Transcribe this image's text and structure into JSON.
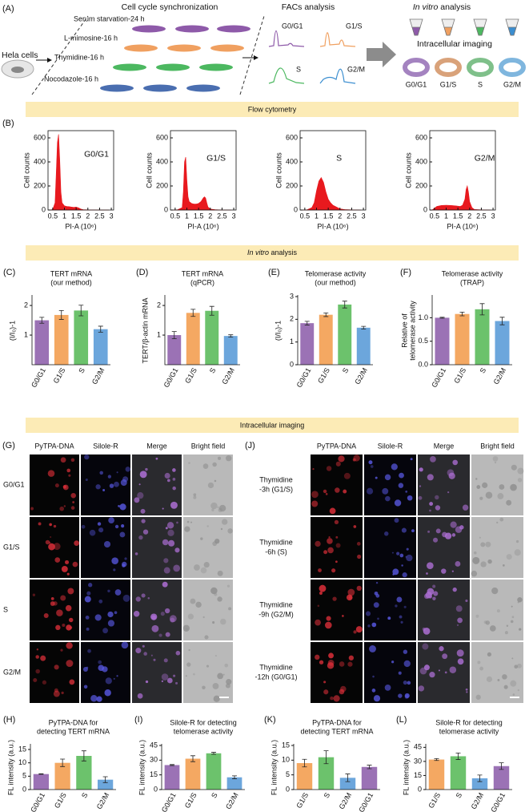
{
  "panel_a": {
    "label": "(A)",
    "source": "Hela cells",
    "sync_title": "Cell cycle synchronization",
    "treatments": [
      "Serum starvation-24 h",
      "L-mimosine-16 h",
      "Thymidine-16 h",
      "Nocodazole-16 h"
    ],
    "facs_title": "FACs analysis",
    "facs_phases": [
      "G0/G1",
      "G1/S",
      "S",
      "G2/M"
    ],
    "invitro_title": [
      "In vitro",
      "analysis"
    ],
    "imaging_title": "Intracellular imaging",
    "imaging_phases": [
      "G0/G1",
      "G1/S",
      "S",
      "G2/M"
    ]
  },
  "section_flow": "Flow cytometry",
  "section_invitro": [
    "In vitro",
    "analysis"
  ],
  "section_imaging": "Intracellular imaging",
  "panel_b_label": "(B)",
  "chart_data": [
    {
      "type": "area",
      "annotation": "G0/G1",
      "xlabel": "PI-A (10⁶)",
      "ylabel": "Cell counts",
      "color": "#e8191e",
      "x": [
        0.4,
        0.5,
        0.6,
        0.65,
        0.7,
        0.75,
        0.8,
        0.85,
        0.9,
        1.0,
        1.1,
        1.2,
        1.3,
        1.4,
        1.5,
        1.6,
        1.7,
        1.8,
        2.0,
        2.5,
        2.9
      ],
      "values": [
        0,
        5,
        60,
        300,
        560,
        630,
        420,
        150,
        60,
        35,
        30,
        28,
        25,
        22,
        25,
        18,
        8,
        3,
        1,
        0,
        0
      ],
      "xlim": [
        0.3,
        3.1
      ],
      "xticks": [
        0.5,
        1,
        1.5,
        2,
        2.5,
        3
      ],
      "ylim": [
        0,
        660
      ],
      "yticks": [
        0,
        200,
        400,
        600
      ]
    },
    {
      "type": "area",
      "annotation": "G1/S",
      "xlabel": "PI-A (10⁶)",
      "ylabel": "Cell counts",
      "color": "#e8191e",
      "x": [
        0.4,
        0.6,
        0.8,
        0.85,
        0.9,
        0.95,
        1.0,
        1.05,
        1.1,
        1.2,
        1.3,
        1.4,
        1.5,
        1.6,
        1.7,
        1.75,
        1.8,
        1.85,
        1.9,
        2.0,
        2.2,
        2.5,
        2.9
      ],
      "values": [
        0,
        2,
        20,
        150,
        400,
        440,
        250,
        110,
        70,
        55,
        50,
        50,
        55,
        70,
        100,
        110,
        100,
        60,
        25,
        8,
        3,
        0,
        0
      ],
      "xlim": [
        0.3,
        3.1
      ],
      "xticks": [
        0.5,
        1,
        1.5,
        2,
        2.5,
        3
      ],
      "ylim": [
        0,
        660
      ],
      "yticks": [
        0,
        200,
        400,
        600
      ]
    },
    {
      "type": "area",
      "annotation": "S",
      "xlabel": "PI-A (10⁶)",
      "ylabel": "Cell counts",
      "color": "#e8191e",
      "x": [
        0.4,
        0.6,
        0.8,
        0.9,
        1.0,
        1.1,
        1.2,
        1.3,
        1.4,
        1.5,
        1.6,
        1.7,
        1.8,
        1.9,
        2.0,
        2.2,
        2.5,
        2.9
      ],
      "values": [
        0,
        2,
        20,
        60,
        160,
        240,
        270,
        230,
        150,
        90,
        60,
        40,
        30,
        20,
        10,
        4,
        1,
        0
      ],
      "xlim": [
        0.3,
        3.1
      ],
      "xticks": [
        0.5,
        1,
        1.5,
        2,
        2.5,
        3
      ],
      "ylim": [
        0,
        660
      ],
      "yticks": [
        0,
        200,
        400,
        600
      ]
    },
    {
      "type": "area",
      "annotation": "G2/M",
      "xlabel": "PI-A (10⁶)",
      "ylabel": "Cell counts",
      "color": "#e8191e",
      "x": [
        0.4,
        0.5,
        0.6,
        0.8,
        1.0,
        1.2,
        1.4,
        1.6,
        1.7,
        1.8,
        1.85,
        1.9,
        1.95,
        2.0,
        2.1,
        2.2,
        2.5,
        2.9
      ],
      "values": [
        0,
        15,
        30,
        38,
        40,
        38,
        35,
        30,
        40,
        90,
        170,
        200,
        150,
        70,
        20,
        5,
        1,
        0
      ],
      "xlim": [
        0.3,
        3.1
      ],
      "xticks": [
        0.5,
        1,
        1.5,
        2,
        2.5,
        3
      ],
      "ylim": [
        0,
        660
      ],
      "yticks": [
        0,
        200,
        400,
        600
      ]
    },
    {
      "type": "bar",
      "label": "(C)",
      "title": "TERT mRNA",
      "subtitle": "(our method)",
      "ylabel": [
        "(I/I₀)-1"
      ],
      "categories": [
        "G0/G1",
        "G1/S",
        "S",
        "G2/M"
      ],
      "values": [
        1.5,
        1.68,
        1.83,
        1.2
      ],
      "errors": [
        0.1,
        0.15,
        0.18,
        0.1
      ],
      "colors": [
        "#9b72b5",
        "#f4a862",
        "#6cc26c",
        "#6ca6dc"
      ],
      "ylim": [
        0,
        2.3
      ],
      "yticks": [
        1,
        2
      ]
    },
    {
      "type": "bar",
      "label": "(D)",
      "title": "TERT mRNA",
      "subtitle": "(qPCR)",
      "ylabel": [
        "TERT/β-actin mRNA"
      ],
      "categories": [
        "G0/G1",
        "G1/S",
        "S",
        "G2/M"
      ],
      "values": [
        1.0,
        1.75,
        1.82,
        0.97
      ],
      "errors": [
        0.12,
        0.12,
        0.15,
        0.04
      ],
      "colors": [
        "#9b72b5",
        "#f4a862",
        "#6cc26c",
        "#6ca6dc"
      ],
      "ylim": [
        0,
        2.3
      ],
      "yticks": [
        1,
        2
      ]
    },
    {
      "type": "bar",
      "label": "(E)",
      "title": "Telomerase activity",
      "subtitle": "(our method)",
      "ylabel": [
        "(I/I₀)-1"
      ],
      "categories": [
        "G0/G1",
        "G1/S",
        "S",
        "G2/M"
      ],
      "values": [
        1.83,
        2.2,
        2.65,
        1.63
      ],
      "errors": [
        0.08,
        0.08,
        0.15,
        0.06
      ],
      "colors": [
        "#9b72b5",
        "#f4a862",
        "#6cc26c",
        "#6ca6dc"
      ],
      "ylim": [
        0,
        3
      ],
      "yticks": [
        0,
        1,
        2,
        3
      ]
    },
    {
      "type": "bar",
      "label": "(F)",
      "title": "Telomerase activity",
      "subtitle": "(TRAP)",
      "ylabel": [
        "Relative of",
        "telomerase activity"
      ],
      "categories": [
        "G0/G1",
        "G1/S",
        "S",
        "G2/M"
      ],
      "values": [
        1.0,
        1.08,
        1.18,
        0.93
      ],
      "errors": [
        0.01,
        0.04,
        0.12,
        0.08
      ],
      "colors": [
        "#9b72b5",
        "#f4a862",
        "#6cc26c",
        "#6ca6dc"
      ],
      "ylim": [
        0,
        1.45
      ],
      "yticks": [
        {
          "value": 0,
          "label": "0.0"
        },
        0.5,
        {
          "value": 1,
          "label": "1.0"
        }
      ]
    },
    {
      "type": "bar",
      "label": "(H)",
      "title": "PyTPA-DNA  for",
      "subtitle": "detecting TERT mRNA",
      "ylabel": [
        "FL intensity (a.u.)"
      ],
      "categories": [
        "G0/G1",
        "G1/S",
        "S",
        "G2/M"
      ],
      "values": [
        5.8,
        10,
        12.6,
        3.7
      ],
      "errors": [
        0.1,
        1.4,
        1.9,
        1.1
      ],
      "colors": [
        "#9b72b5",
        "#f4a862",
        "#6cc26c",
        "#6ca6dc"
      ],
      "ylim": [
        0,
        16.5
      ],
      "yticks": [
        0,
        5,
        10,
        15
      ]
    },
    {
      "type": "bar",
      "label": "(I)",
      "title": "Silole-R for detecting",
      "subtitle": "telomerase activity",
      "ylabel": [
        "FL intensity (a.u.)"
      ],
      "categories": [
        "G0/G1",
        "G1/S",
        "S",
        "G2/M"
      ],
      "values": [
        25,
        31.5,
        37,
        12.5
      ],
      "errors": [
        0.5,
        3,
        1,
        1.5
      ],
      "colors": [
        "#9b72b5",
        "#f4a862",
        "#6cc26c",
        "#6ca6dc"
      ],
      "ylim": [
        0,
        45
      ],
      "yticks": [
        0,
        15,
        30,
        45
      ]
    },
    {
      "type": "bar",
      "label": "(K)",
      "title": "PyTPA-DNA for",
      "subtitle": "detecting TERT mRNA",
      "ylabel": [
        "FL intensity (a.u.)"
      ],
      "categories": [
        "G1/S",
        "S",
        "G2/M",
        "G0/G1"
      ],
      "values": [
        9,
        11,
        4,
        7.7
      ],
      "errors": [
        1.3,
        2.2,
        1.3,
        0.6
      ],
      "colors": [
        "#f4a862",
        "#6cc26c",
        "#6ca6dc",
        "#9b72b5"
      ],
      "ylim": [
        0,
        15
      ],
      "yticks": [
        0,
        5,
        10,
        15
      ]
    },
    {
      "type": "bar",
      "label": "(L)",
      "title": "Silole-R for detecting",
      "subtitle": "telomerase activity",
      "ylabel": [
        "FL intensity (a.u.)"
      ],
      "categories": [
        "G1/S",
        "S",
        "G2/M",
        "G0/G1"
      ],
      "values": [
        32,
        35.5,
        12,
        25
      ],
      "errors": [
        1,
        3.5,
        3.5,
        3.5
      ],
      "colors": [
        "#f4a862",
        "#6cc26c",
        "#6ca6dc",
        "#9b72b5"
      ],
      "ylim": [
        0,
        47
      ],
      "yticks": [
        0,
        15,
        30,
        45
      ]
    }
  ],
  "panel_g": {
    "label": "(G)",
    "columns": [
      "PyTPA-DNA",
      "Silole-R",
      "Merge",
      "Bright field"
    ],
    "rows": [
      "G0/G1",
      "G1/S",
      "S",
      "G2/M"
    ]
  },
  "panel_j": {
    "label": "(J)",
    "columns": [
      "PyTPA-DNA",
      "Silole-R",
      "Merge",
      "Bright field"
    ],
    "rows": [
      [
        "Thymidine",
        "-3h (G1/S)"
      ],
      [
        "Thymidine",
        "-6h (S)"
      ],
      [
        "Thymidine",
        "-9h (G2/M)"
      ],
      [
        "Thymidine",
        "-12h (G0/G1)"
      ]
    ]
  }
}
